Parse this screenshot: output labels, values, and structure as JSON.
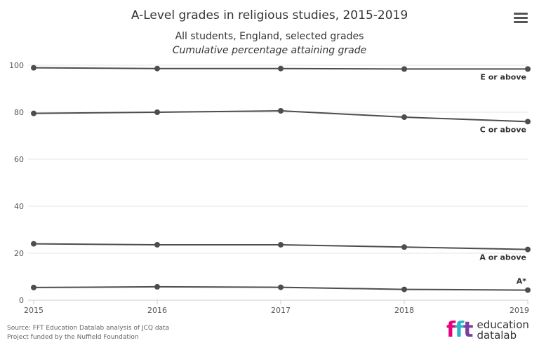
{
  "chart_data": {
    "type": "line",
    "title": "A-Level grades in religious studies, 2015-2019",
    "subtitle": "All students, England, selected grades",
    "subtitle2": "Cumulative percentage attaining grade",
    "x": [
      "2015",
      "2016",
      "2017",
      "2018",
      "2019"
    ],
    "ylim": [
      0,
      100
    ],
    "yticks": [
      0,
      20,
      40,
      60,
      80,
      100
    ],
    "grid": true,
    "series": [
      {
        "name": "E or above",
        "values": [
          98.9,
          98.6,
          98.6,
          98.4,
          98.4
        ]
      },
      {
        "name": "C or above",
        "values": [
          79.5,
          80.0,
          80.6,
          77.9,
          76.0
        ]
      },
      {
        "name": "A or above",
        "values": [
          24.0,
          23.6,
          23.6,
          22.6,
          21.6
        ]
      },
      {
        "name": "A*",
        "values": [
          5.4,
          5.7,
          5.5,
          4.6,
          4.3
        ]
      }
    ]
  },
  "menu": {
    "icon": "hamburger-menu-icon"
  },
  "credits": {
    "line1": "Source: FFT Education Datalab analysis of JCQ data",
    "line2": "Project funded by the Nuffield Foundation"
  },
  "logo": {
    "letters": [
      "f",
      "f",
      "t"
    ],
    "word1": "education",
    "word2": "datalab"
  }
}
